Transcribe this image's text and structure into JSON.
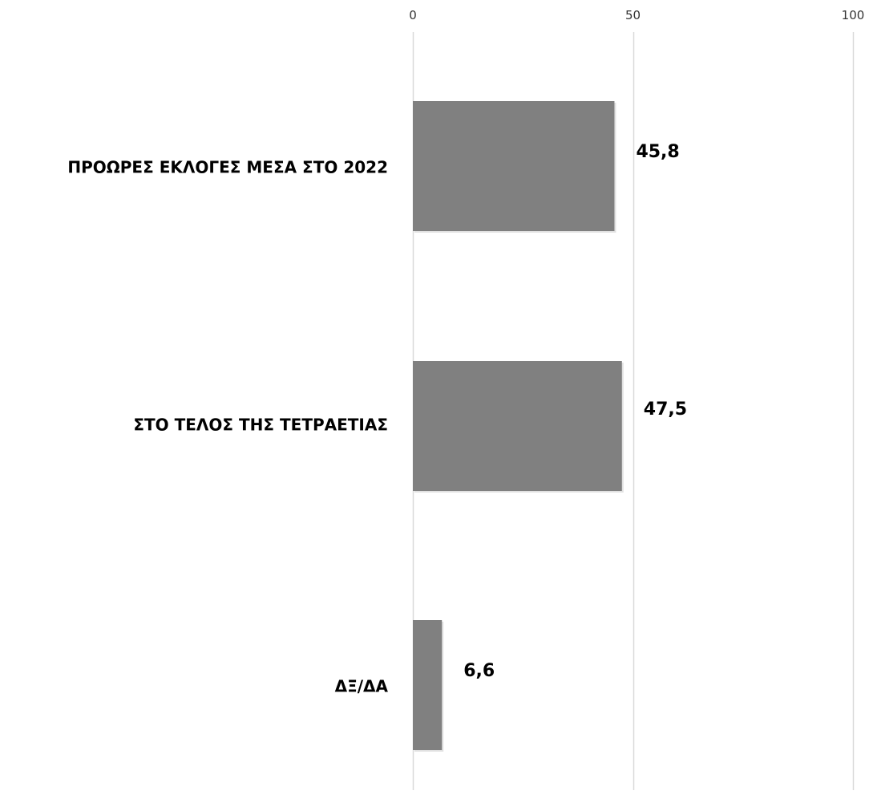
{
  "chart_data": {
    "type": "bar",
    "orientation": "horizontal",
    "categories": [
      "ΠΡΟΩΡΕΣ ΕΚΛΟΓΕΣ ΜΕΣΑ ΣΤΟ 2022",
      "ΣΤΟ ΤΕΛΟΣ ΤΗΣ ΤΕΤΡΑΕΤΙΑΣ",
      "ΔΞ/ΔΑ"
    ],
    "values": [
      45.8,
      47.5,
      6.6
    ],
    "data_labels": [
      "45,8",
      "47,5",
      "6,6"
    ],
    "xlim": [
      0,
      100
    ],
    "x_ticks": [
      0,
      50,
      100
    ],
    "x_tick_labels": [
      "0",
      "50",
      "100"
    ],
    "x_axis_position": "top",
    "grid": true,
    "legend": "none",
    "colors": {
      "bar": "#808080",
      "grid": "#d9d9d9",
      "text": "#000000"
    }
  }
}
